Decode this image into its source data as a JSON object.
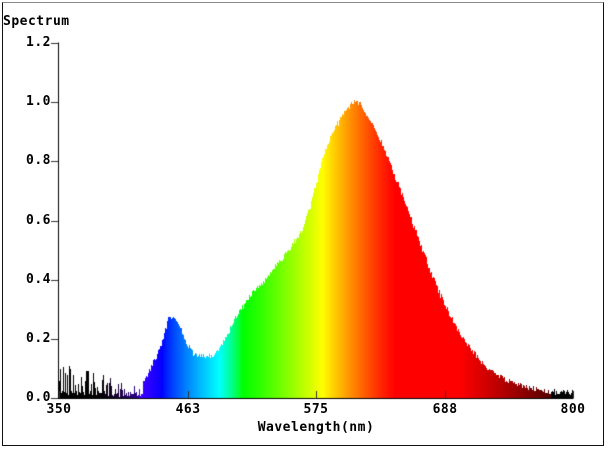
{
  "window": {
    "background": "#ffffff",
    "frame_border_color": "#111111",
    "frame_top_border_color": "#8a8a8a"
  },
  "chart_data": {
    "type": "area",
    "title": "Spectrum",
    "xlabel": "Wavelength(nm)",
    "ylabel": "",
    "xlim": [
      350,
      800
    ],
    "ylim": [
      0.0,
      1.2
    ],
    "x_ticks": [
      350,
      463,
      575,
      688,
      800
    ],
    "y_ticks": [
      1.2,
      1.0,
      0.8,
      0.6,
      0.4,
      0.2,
      0.0
    ],
    "grid": false,
    "legend": false,
    "axis_color": "#000000",
    "tick_color": "#333333",
    "fill_style": "per-wavelength-visible-spectrum-color",
    "noise_region": {
      "from": 350,
      "to": 423,
      "style": "random-black-spikes",
      "typical_max": 0.14
    },
    "edge_jitter": 0.018,
    "series": [
      {
        "name": "spectrum",
        "points": [
          [
            350,
            0.1
          ],
          [
            355,
            0.105
          ],
          [
            360,
            0.115
          ],
          [
            365,
            0.095
          ],
          [
            370,
            0.09
          ],
          [
            375,
            0.08
          ],
          [
            380,
            0.075
          ],
          [
            385,
            0.065
          ],
          [
            390,
            0.06
          ],
          [
            395,
            0.055
          ],
          [
            400,
            0.05
          ],
          [
            405,
            0.045
          ],
          [
            410,
            0.04
          ],
          [
            415,
            0.038
          ],
          [
            420,
            0.045
          ],
          [
            425,
            0.06
          ],
          [
            430,
            0.1
          ],
          [
            435,
            0.14
          ],
          [
            440,
            0.185
          ],
          [
            443,
            0.235
          ],
          [
            445,
            0.262
          ],
          [
            447,
            0.28
          ],
          [
            449,
            0.272
          ],
          [
            452,
            0.262
          ],
          [
            455,
            0.25
          ],
          [
            458,
            0.225
          ],
          [
            460,
            0.2
          ],
          [
            463,
            0.175
          ],
          [
            466,
            0.158
          ],
          [
            470,
            0.148
          ],
          [
            475,
            0.14
          ],
          [
            480,
            0.137
          ],
          [
            485,
            0.143
          ],
          [
            490,
            0.168
          ],
          [
            495,
            0.198
          ],
          [
            500,
            0.24
          ],
          [
            505,
            0.278
          ],
          [
            510,
            0.31
          ],
          [
            515,
            0.338
          ],
          [
            520,
            0.36
          ],
          [
            525,
            0.38
          ],
          [
            530,
            0.4
          ],
          [
            535,
            0.425
          ],
          [
            540,
            0.45
          ],
          [
            545,
            0.47
          ],
          [
            550,
            0.498
          ],
          [
            555,
            0.525
          ],
          [
            560,
            0.552
          ],
          [
            565,
            0.59
          ],
          [
            570,
            0.65
          ],
          [
            575,
            0.73
          ],
          [
            580,
            0.8
          ],
          [
            585,
            0.86
          ],
          [
            590,
            0.905
          ],
          [
            595,
            0.94
          ],
          [
            600,
            0.968
          ],
          [
            605,
            0.99
          ],
          [
            608,
            1.0
          ],
          [
            612,
            0.995
          ],
          [
            615,
            0.985
          ],
          [
            620,
            0.95
          ],
          [
            625,
            0.915
          ],
          [
            630,
            0.88
          ],
          [
            635,
            0.838
          ],
          [
            640,
            0.79
          ],
          [
            645,
            0.738
          ],
          [
            650,
            0.688
          ],
          [
            655,
            0.635
          ],
          [
            660,
            0.585
          ],
          [
            665,
            0.532
          ],
          [
            670,
            0.48
          ],
          [
            675,
            0.428
          ],
          [
            680,
            0.38
          ],
          [
            685,
            0.338
          ],
          [
            690,
            0.298
          ],
          [
            695,
            0.26
          ],
          [
            700,
            0.225
          ],
          [
            705,
            0.195
          ],
          [
            710,
            0.168
          ],
          [
            715,
            0.143
          ],
          [
            720,
            0.122
          ],
          [
            725,
            0.103
          ],
          [
            730,
            0.088
          ],
          [
            735,
            0.074
          ],
          [
            740,
            0.063
          ],
          [
            745,
            0.054
          ],
          [
            750,
            0.046
          ],
          [
            755,
            0.04
          ],
          [
            760,
            0.035
          ],
          [
            765,
            0.03
          ],
          [
            770,
            0.027
          ],
          [
            775,
            0.024
          ],
          [
            780,
            0.022
          ],
          [
            785,
            0.02
          ],
          [
            790,
            0.019
          ],
          [
            795,
            0.018
          ],
          [
            800,
            0.017
          ]
        ]
      }
    ]
  }
}
